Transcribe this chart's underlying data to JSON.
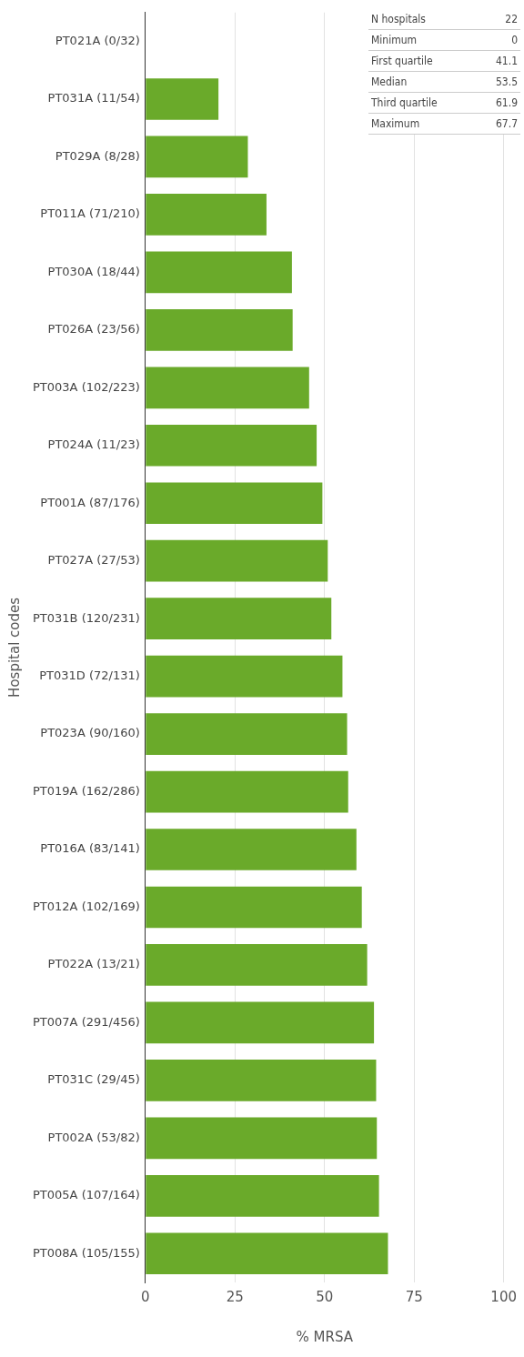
{
  "chart_data": {
    "type": "bar",
    "orientation": "horizontal",
    "categories": [
      "PT021A (0/32)",
      "PT031A (11/54)",
      "PT029A (8/28)",
      "PT011A (71/210)",
      "PT030A (18/44)",
      "PT026A (23/56)",
      "PT003A (102/223)",
      "PT024A (11/23)",
      "PT001A (87/176)",
      "PT027A (27/53)",
      "PT031B (120/231)",
      "PT031D (72/131)",
      "PT023A (90/160)",
      "PT019A (162/286)",
      "PT016A (83/141)",
      "PT012A (102/169)",
      "PT022A (13/21)",
      "PT007A (291/456)",
      "PT031C (29/45)",
      "PT002A (53/82)",
      "PT005A (107/164)",
      "PT008A (105/155)"
    ],
    "values": [
      0,
      20.4,
      28.6,
      33.8,
      40.9,
      41.1,
      45.7,
      47.8,
      49.4,
      50.9,
      51.9,
      55.0,
      56.3,
      56.6,
      58.9,
      60.4,
      61.9,
      63.8,
      64.4,
      64.6,
      65.2,
      67.7
    ],
    "color": "#6aaa2a",
    "xlim": [
      0,
      100
    ],
    "xticks": [
      0,
      25,
      50,
      75,
      100
    ],
    "xlabel": "% MRSA",
    "ylabel": "Hospital codes",
    "grid": "x",
    "annotations": [
      "N hospitals",
      "22",
      "Minimum",
      "0",
      "First quartile",
      "41.1",
      "Median",
      "53.5",
      "Third quartile",
      "61.9",
      "Maximum",
      "67.7"
    ]
  }
}
